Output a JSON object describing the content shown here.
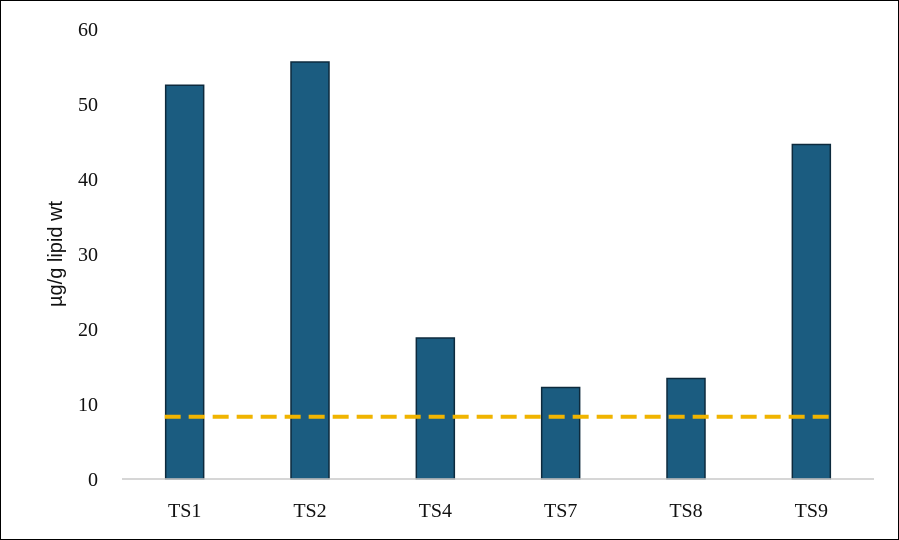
{
  "colors": {
    "bar_fill": "#1b5c80",
    "bar_stroke": "#0d2a3d",
    "reference_line": "#f0b400",
    "axis_line": "#c8c8c8"
  },
  "chart_data": {
    "type": "bar",
    "title": "",
    "xlabel": "",
    "ylabel": "µg/g lipid wt",
    "categories": [
      "TS1",
      "TS2",
      "TS4",
      "TS7",
      "TS8",
      "TS9"
    ],
    "values": [
      52.5,
      55.6,
      18.8,
      12.2,
      13.4,
      44.6
    ],
    "ylim": [
      0,
      60
    ],
    "yticks": [
      0,
      10,
      20,
      30,
      40,
      50,
      60
    ],
    "grid": false,
    "legend": "none",
    "reference_line": {
      "value": 8.3,
      "style": "dashed"
    }
  }
}
